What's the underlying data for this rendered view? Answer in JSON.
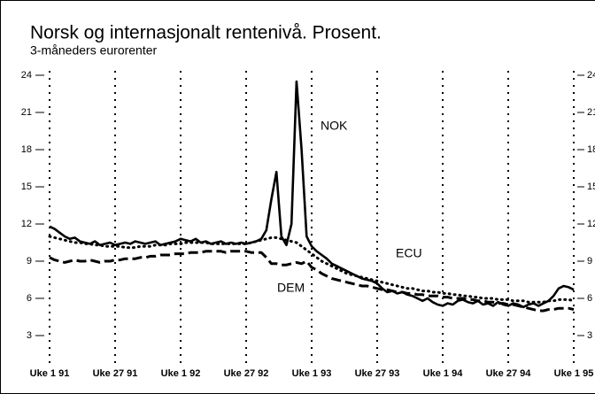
{
  "chart_data": {
    "type": "line",
    "title": "Norsk og internasjonalt rentenivå. Prosent.",
    "subtitle": "3-måneders eurorenter",
    "categories": [
      "Uke 1 91",
      null,
      null,
      null,
      null,
      null,
      null,
      null,
      null,
      null,
      null,
      null,
      null,
      "Uke 27 91",
      null,
      null,
      null,
      null,
      null,
      null,
      null,
      null,
      null,
      null,
      null,
      null,
      "Uke 1 92",
      null,
      null,
      null,
      null,
      null,
      null,
      null,
      null,
      null,
      null,
      null,
      null,
      "Uke 27 92",
      null,
      null,
      null,
      null,
      null,
      null,
      null,
      null,
      null,
      null,
      null,
      null,
      "Uke 1 93",
      null,
      null,
      null,
      null,
      null,
      null,
      null,
      null,
      null,
      null,
      null,
      null,
      "Uke 27 93",
      null,
      null,
      null,
      null,
      null,
      null,
      null,
      null,
      null,
      null,
      null,
      null,
      "Uke 1 94",
      null,
      null,
      null,
      null,
      null,
      null,
      null,
      null,
      null,
      null,
      null,
      null,
      "Uke 27 94",
      null,
      null,
      null,
      null,
      null,
      null,
      null,
      null,
      null,
      null,
      null,
      null,
      "Uke 1 95"
    ],
    "series": [
      {
        "name": "NOK",
        "color": "#000000",
        "dash": "solid",
        "values": [
          11.8,
          11.6,
          11.3,
          11.0,
          10.8,
          10.9,
          10.6,
          10.5,
          10.4,
          10.6,
          10.3,
          10.4,
          10.5,
          10.3,
          10.4,
          10.5,
          10.4,
          10.6,
          10.5,
          10.4,
          10.5,
          10.6,
          10.3,
          10.4,
          10.5,
          10.6,
          10.8,
          10.7,
          10.6,
          10.8,
          10.5,
          10.6,
          10.4,
          10.5,
          10.6,
          10.4,
          10.5,
          10.4,
          10.5,
          10.4,
          10.5,
          10.6,
          10.8,
          11.5,
          14.0,
          16.2,
          11.0,
          10.3,
          12.0,
          23.5,
          18.0,
          11.0,
          10.2,
          9.8,
          9.5,
          9.2,
          8.8,
          8.6,
          8.4,
          8.2,
          8.0,
          7.8,
          7.6,
          7.5,
          7.4,
          7.2,
          6.8,
          6.5,
          6.6,
          6.4,
          6.5,
          6.3,
          6.2,
          6.0,
          5.8,
          6.0,
          5.7,
          5.5,
          5.4,
          5.6,
          5.5,
          5.8,
          5.9,
          5.7,
          5.6,
          5.8,
          5.5,
          5.6,
          5.4,
          5.7,
          5.5,
          5.4,
          5.6,
          5.5,
          5.3,
          5.5,
          5.6,
          5.4,
          5.6,
          5.8,
          6.2,
          6.8,
          7.0,
          6.9,
          6.7
        ]
      },
      {
        "name": "ECU",
        "color": "#000000",
        "dash": "dotted",
        "values": [
          11.0,
          10.9,
          10.8,
          10.7,
          10.6,
          10.5,
          10.5,
          10.4,
          10.4,
          10.3,
          10.3,
          10.2,
          10.2,
          10.2,
          10.2,
          10.1,
          10.1,
          10.1,
          10.2,
          10.2,
          10.2,
          10.3,
          10.3,
          10.3,
          10.4,
          10.4,
          10.4,
          10.5,
          10.5,
          10.5,
          10.5,
          10.5,
          10.4,
          10.4,
          10.4,
          10.4,
          10.4,
          10.4,
          10.4,
          10.4,
          10.5,
          10.6,
          10.7,
          10.8,
          10.9,
          10.9,
          10.8,
          10.7,
          10.6,
          10.5,
          10.2,
          9.9,
          9.6,
          9.3,
          9.0,
          8.8,
          8.6,
          8.4,
          8.2,
          8.0,
          7.9,
          7.8,
          7.7,
          7.6,
          7.5,
          7.4,
          7.3,
          7.2,
          7.1,
          7.0,
          6.9,
          6.8,
          6.8,
          6.7,
          6.6,
          6.6,
          6.5,
          6.5,
          6.4,
          6.4,
          6.3,
          6.3,
          6.2,
          6.2,
          6.1,
          6.1,
          6.0,
          6.0,
          6.0,
          5.9,
          5.9,
          5.9,
          5.8,
          5.8,
          5.8,
          5.7,
          5.7,
          5.7,
          5.7,
          5.8,
          5.8,
          5.9,
          5.9,
          5.9,
          5.8
        ]
      },
      {
        "name": "DEM",
        "color": "#000000",
        "dash": "dashed",
        "values": [
          9.3,
          9.1,
          9.0,
          8.9,
          9.0,
          9.1,
          9.0,
          9.0,
          9.1,
          9.0,
          8.9,
          9.0,
          9.0,
          9.1,
          9.1,
          9.2,
          9.2,
          9.2,
          9.3,
          9.3,
          9.4,
          9.4,
          9.5,
          9.5,
          9.5,
          9.6,
          9.6,
          9.6,
          9.7,
          9.7,
          9.7,
          9.8,
          9.8,
          9.8,
          9.8,
          9.7,
          9.8,
          9.8,
          9.8,
          9.8,
          9.7,
          9.7,
          9.7,
          9.3,
          8.8,
          8.8,
          8.7,
          8.7,
          8.8,
          8.9,
          8.8,
          9.0,
          8.5,
          8.3,
          8.0,
          7.8,
          7.6,
          7.5,
          7.4,
          7.3,
          7.2,
          7.1,
          7.0,
          7.0,
          6.9,
          6.8,
          6.7,
          6.7,
          6.6,
          6.5,
          6.5,
          6.4,
          6.4,
          6.3,
          6.3,
          6.2,
          6.2,
          6.2,
          6.1,
          6.1,
          6.0,
          6.0,
          6.0,
          5.9,
          5.9,
          5.8,
          5.8,
          5.7,
          5.7,
          5.6,
          5.6,
          5.5,
          5.5,
          5.4,
          5.3,
          5.2,
          5.1,
          5.0,
          5.0,
          5.1,
          5.1,
          5.2,
          5.2,
          5.2,
          5.1
        ]
      }
    ],
    "ylim": [
      0,
      24
    ],
    "yticks": [
      3,
      6,
      9,
      12,
      15,
      18,
      21,
      24
    ],
    "right_axis": true,
    "grid": "dotted-vertical"
  }
}
